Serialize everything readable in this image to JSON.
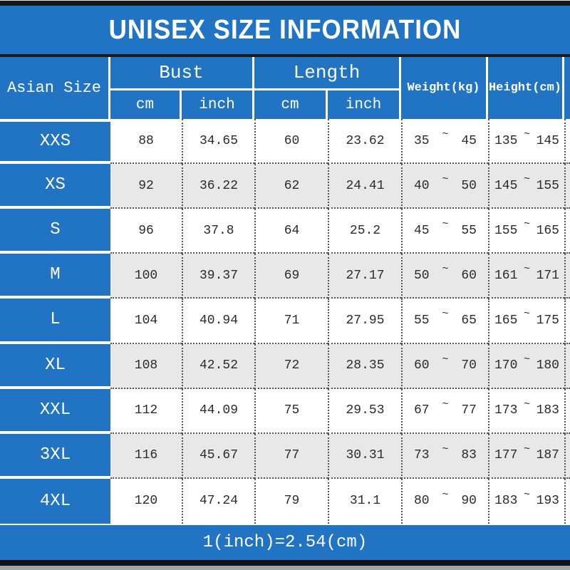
{
  "title": "UNISEX SIZE INFORMATION",
  "header": {
    "asian_size": "Asian Size",
    "bust": "Bust",
    "length": "Length",
    "cm": "cm",
    "inch": "inch",
    "weight": "Weight(kg)",
    "height": "Height(cm)"
  },
  "tilde": "~",
  "rows": [
    {
      "size": "XXS",
      "bust_cm": "88",
      "bust_inch": "34.65",
      "length_cm": "60",
      "length_inch": "23.62",
      "weight_min": "35",
      "weight_max": "45",
      "height_min": "135",
      "height_max": "145"
    },
    {
      "size": "XS",
      "bust_cm": "92",
      "bust_inch": "36.22",
      "length_cm": "62",
      "length_inch": "24.41",
      "weight_min": "40",
      "weight_max": "50",
      "height_min": "145",
      "height_max": "155"
    },
    {
      "size": "S",
      "bust_cm": "96",
      "bust_inch": "37.8",
      "length_cm": "64",
      "length_inch": "25.2",
      "weight_min": "45",
      "weight_max": "55",
      "height_min": "155",
      "height_max": "165"
    },
    {
      "size": "M",
      "bust_cm": "100",
      "bust_inch": "39.37",
      "length_cm": "69",
      "length_inch": "27.17",
      "weight_min": "50",
      "weight_max": "60",
      "height_min": "161",
      "height_max": "171"
    },
    {
      "size": "L",
      "bust_cm": "104",
      "bust_inch": "40.94",
      "length_cm": "71",
      "length_inch": "27.95",
      "weight_min": "55",
      "weight_max": "65",
      "height_min": "165",
      "height_max": "175"
    },
    {
      "size": "XL",
      "bust_cm": "108",
      "bust_inch": "42.52",
      "length_cm": "72",
      "length_inch": "28.35",
      "weight_min": "60",
      "weight_max": "70",
      "height_min": "170",
      "height_max": "180"
    },
    {
      "size": "XXL",
      "bust_cm": "112",
      "bust_inch": "44.09",
      "length_cm": "75",
      "length_inch": "29.53",
      "weight_min": "67",
      "weight_max": "77",
      "height_min": "173",
      "height_max": "183"
    },
    {
      "size": "3XL",
      "bust_cm": "116",
      "bust_inch": "45.67",
      "length_cm": "77",
      "length_inch": "30.31",
      "weight_min": "73",
      "weight_max": "83",
      "height_min": "177",
      "height_max": "187"
    },
    {
      "size": "4XL",
      "bust_cm": "120",
      "bust_inch": "47.24",
      "length_cm": "79",
      "length_inch": "31.1",
      "weight_min": "80",
      "weight_max": "90",
      "height_min": "183",
      "height_max": "193"
    }
  ],
  "footer": {
    "note": "1(inch)=2.54(cm)"
  },
  "colors": {
    "accent_blue": "#2173c4",
    "row_alt_gray": "#e8e8e8",
    "data_text": "#2b2b2b",
    "header_text": "#ffffff"
  }
}
